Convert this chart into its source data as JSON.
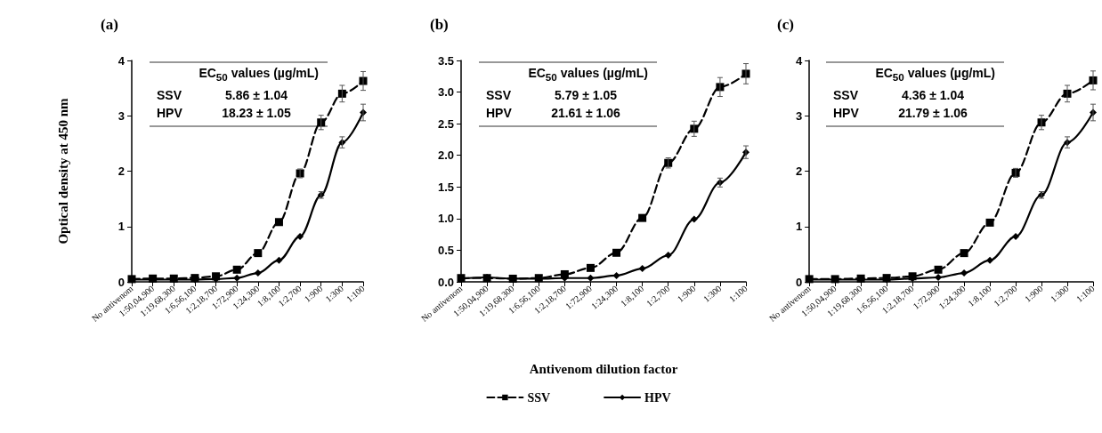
{
  "chart_data": [
    {
      "type": "line",
      "title": "(a)",
      "ylabel": "Optical density at 450 nm",
      "categories": [
        "No antivenom",
        "1:50,04,900",
        "1:19,68,300",
        "1:6,56,100",
        "1:2,18,700",
        "1:72,900",
        "1:24,300",
        "1:8,100",
        "1:2,700",
        "1:900",
        "1:300",
        "1:100"
      ],
      "ylim": [
        0,
        4
      ],
      "yticks": [
        0,
        1,
        2,
        3,
        4
      ],
      "grid": false,
      "annotations": [
        "EC$_{50}$ values (µg/mL)",
        "SSV",
        "5.86 ± 1.04",
        "HPV",
        "18.23 ± 1.05"
      ],
      "series": [
        {
          "color": "#000000",
          "line_style": "dashed",
          "marker": "square",
          "values": [
            0.05,
            0.06,
            0.06,
            0.07,
            0.1,
            0.22,
            0.52,
            1.08,
            1.96,
            2.88,
            3.4,
            3.63
          ],
          "errors": [
            null,
            null,
            null,
            null,
            null,
            null,
            null,
            null,
            0.08,
            0.13,
            0.15,
            0.17
          ]
        },
        {
          "color": "#000000",
          "line_style": "solid",
          "marker": "diamond",
          "values": [
            0.04,
            0.04,
            0.04,
            0.04,
            0.05,
            0.07,
            0.16,
            0.39,
            0.82,
            1.57,
            2.52,
            3.06
          ],
          "errors": [
            null,
            null,
            null,
            null,
            null,
            null,
            null,
            null,
            null,
            0.06,
            0.1,
            0.15
          ]
        }
      ]
    },
    {
      "type": "line",
      "title": "(b)",
      "xlabel": "Antivenom dilution factor",
      "legend": "bottom",
      "categories": [
        "No antivenom",
        "1:50,04,900",
        "1:19,68,300",
        "1:6,56,100",
        "1:2,18,700",
        "1:72,900",
        "1:24,300",
        "1:8,100",
        "1:2,700",
        "1:900",
        "1:300",
        "1:100"
      ],
      "ylim": [
        0,
        3.5
      ],
      "yticks": [
        {
          "value": 0,
          "label": "0.0"
        },
        0.5,
        {
          "value": 1,
          "label": "1.0"
        },
        1.5,
        {
          "value": 2,
          "label": "2.0"
        },
        2.5,
        {
          "value": 3,
          "label": "3.0"
        },
        3.5
      ],
      "grid": false,
      "annotations": [
        "EC$_{50}$ values (µg/mL)",
        "SSV",
        "5.79 ± 1.05",
        "HPV",
        "21.61 ± 1.06"
      ],
      "series": [
        {
          "name": "SSV",
          "color": "#000000",
          "line_style": "dashed",
          "marker": "square",
          "values": [
            0.06,
            0.06,
            0.05,
            0.06,
            0.12,
            0.22,
            0.46,
            1.01,
            1.88,
            2.42,
            3.08,
            3.29
          ],
          "errors": [
            null,
            null,
            null,
            null,
            null,
            null,
            null,
            null,
            0.08,
            0.12,
            0.15,
            0.16
          ]
        },
        {
          "name": "HPV",
          "color": "#000000",
          "line_style": "solid",
          "marker": "diamond",
          "values": [
            0.05,
            0.07,
            0.05,
            0.05,
            0.06,
            0.06,
            0.1,
            0.21,
            0.42,
            0.99,
            1.57,
            2.05
          ],
          "errors": [
            null,
            null,
            null,
            null,
            null,
            null,
            null,
            null,
            null,
            null,
            0.07,
            0.1
          ]
        }
      ]
    },
    {
      "type": "line",
      "title": "(c)",
      "categories": [
        "No antivenom",
        "1:50,04,900",
        "1:19,68,300",
        "1:6,56,100",
        "1:2,18,700",
        "1:72,900",
        "1:24,300",
        "1:8,100",
        "1:2,700",
        "1:900",
        "1:300",
        "1:100"
      ],
      "ylim": [
        0,
        4
      ],
      "yticks": [
        0,
        1,
        2,
        3,
        4
      ],
      "grid": false,
      "annotations": [
        "EC$_{50}$ values (µg/mL)",
        "SSV",
        "4.36 ± 1.04",
        "HPV",
        "21.79 ± 1.06"
      ],
      "series": [
        {
          "color": "#000000",
          "line_style": "dashed",
          "marker": "square",
          "values": [
            0.05,
            0.05,
            0.06,
            0.07,
            0.1,
            0.22,
            0.52,
            1.07,
            1.97,
            2.88,
            3.4,
            3.64
          ],
          "errors": [
            null,
            null,
            null,
            null,
            null,
            null,
            null,
            null,
            0.08,
            0.13,
            0.15,
            0.17
          ]
        },
        {
          "color": "#000000",
          "line_style": "solid",
          "marker": "diamond",
          "values": [
            0.04,
            0.04,
            0.04,
            0.04,
            0.06,
            0.08,
            0.16,
            0.39,
            0.82,
            1.57,
            2.52,
            3.06
          ],
          "errors": [
            null,
            null,
            null,
            null,
            null,
            null,
            null,
            null,
            null,
            0.06,
            0.1,
            0.15
          ]
        }
      ]
    }
  ]
}
